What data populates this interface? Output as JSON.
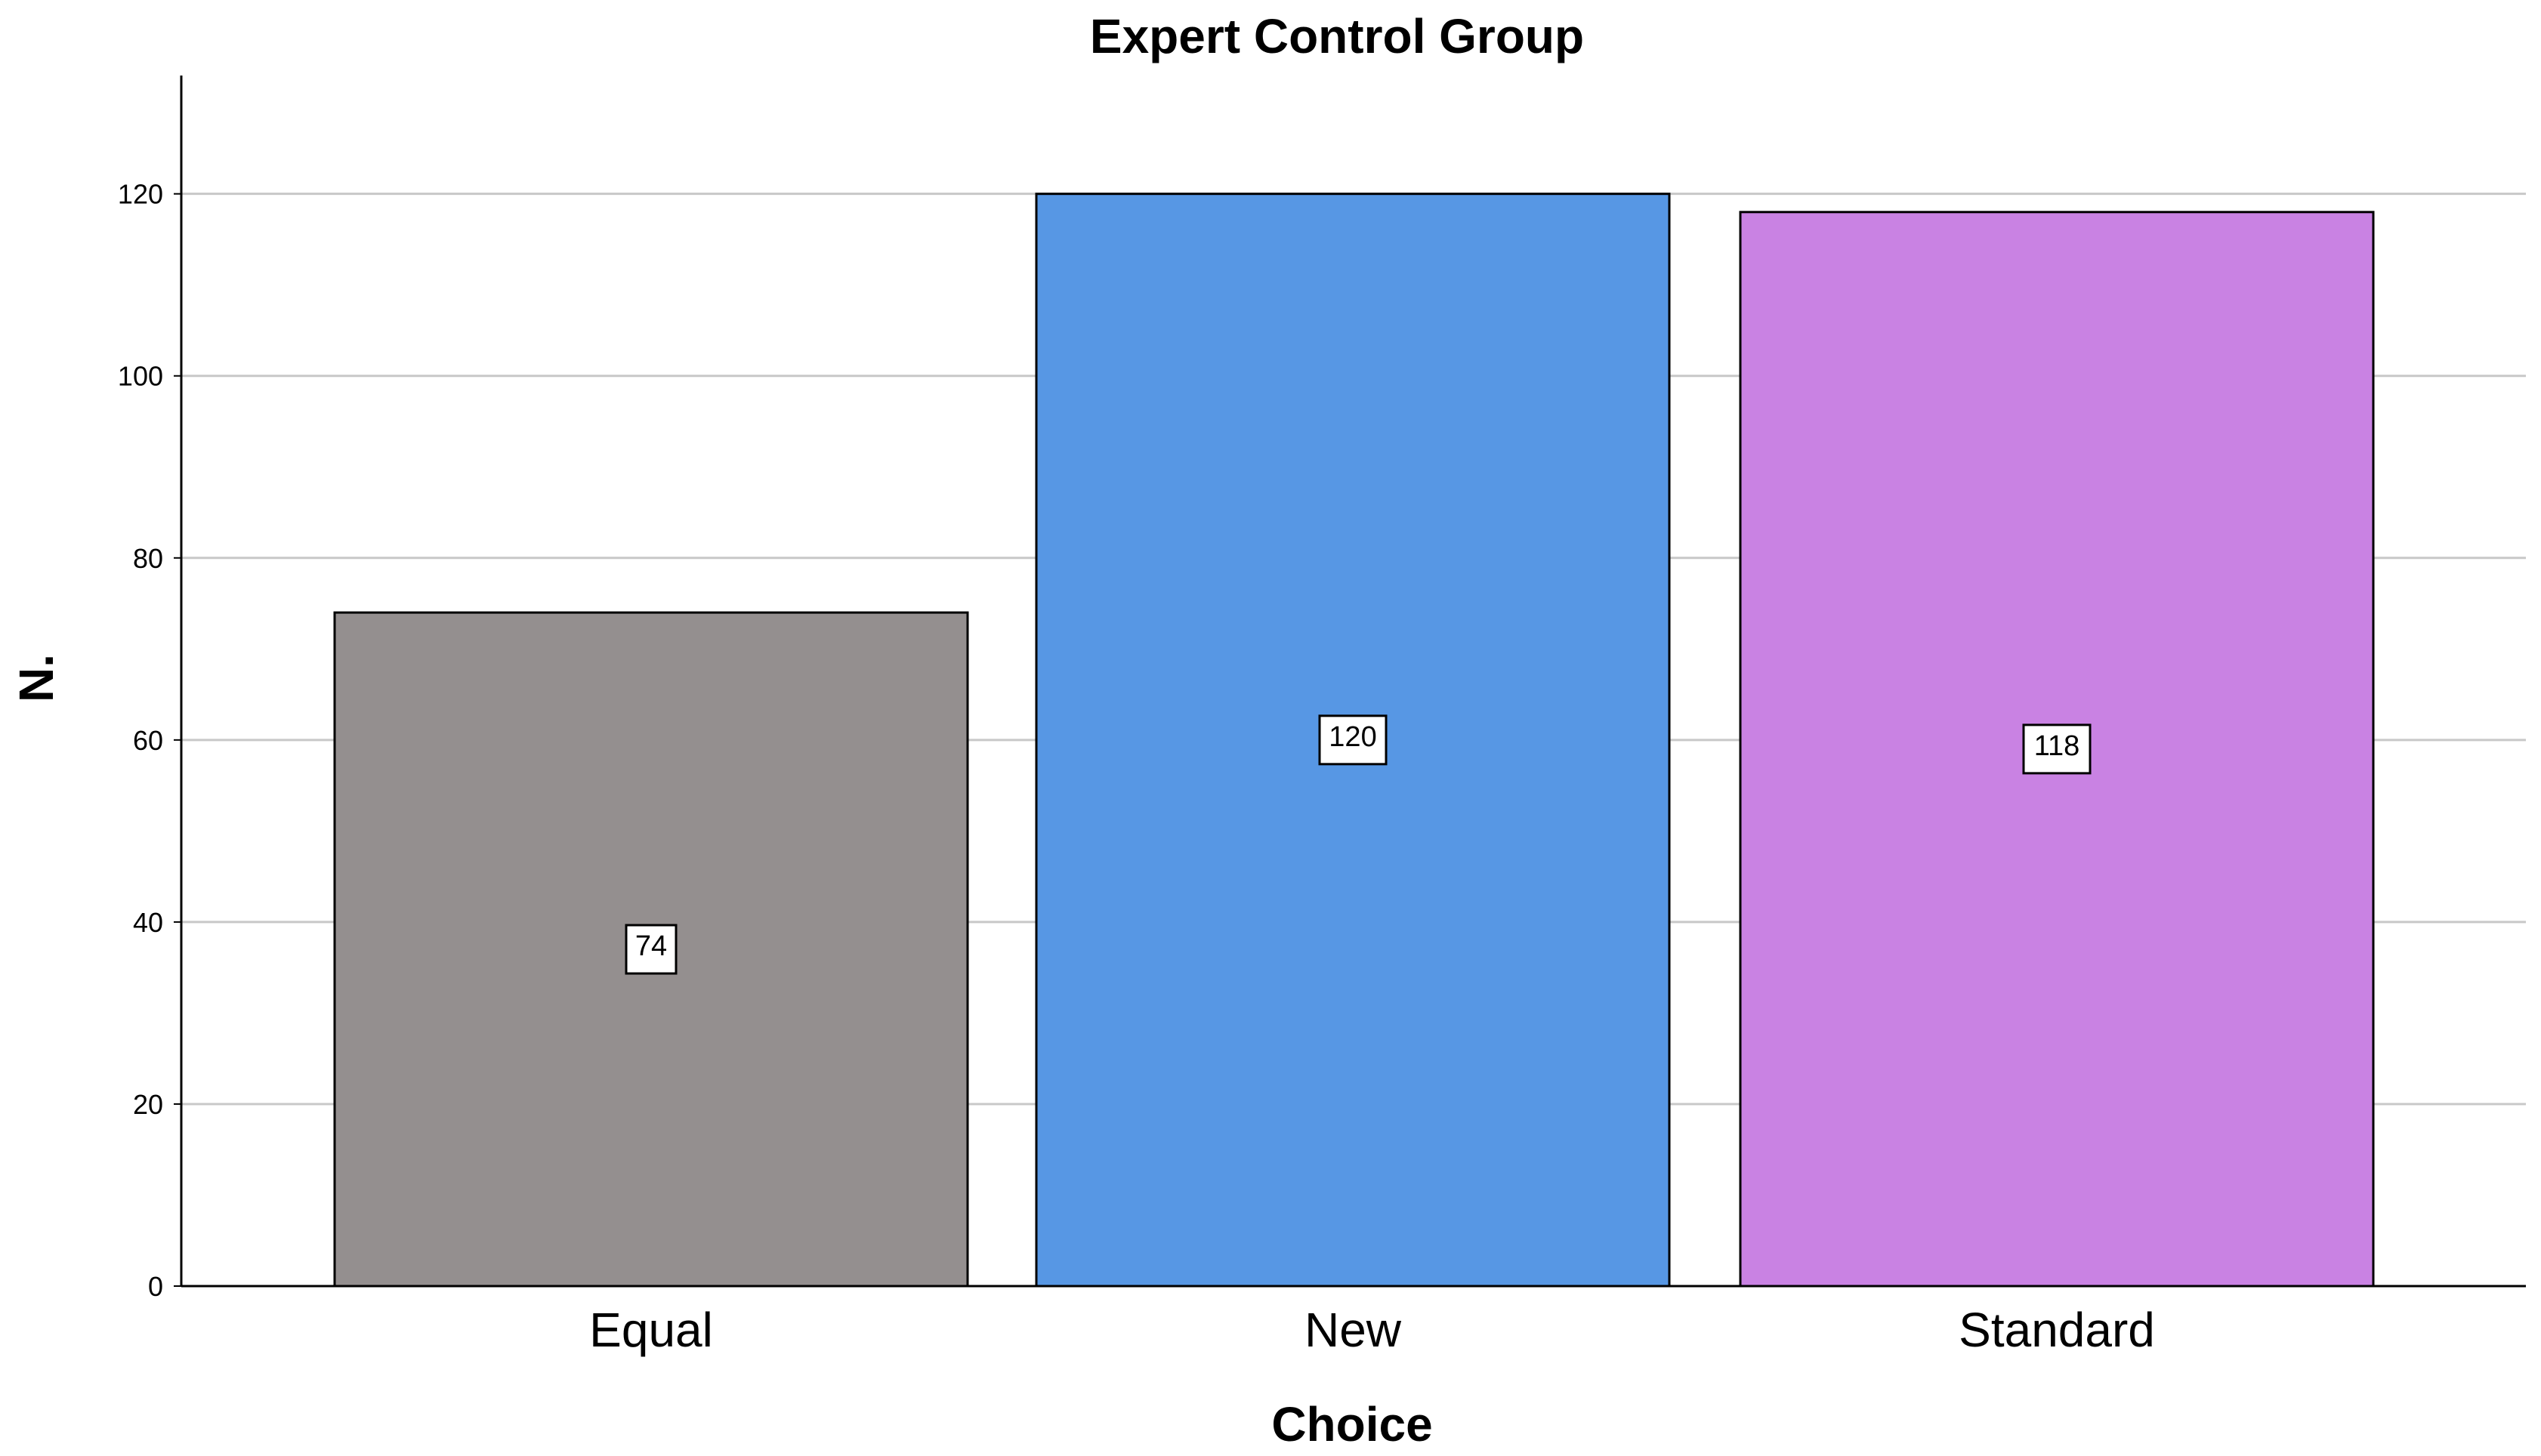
{
  "chart_data": {
    "type": "bar",
    "title": "Expert Control Group",
    "xlabel": "Choice",
    "ylabel": "N.",
    "categories": [
      "Equal",
      "New",
      "Standard"
    ],
    "values": [
      74,
      120,
      118
    ],
    "data_labels": [
      "74",
      "120",
      "118"
    ],
    "colors": [
      "#948f8f",
      "#5797e4",
      "#c982e3"
    ],
    "yticks": [
      0,
      20,
      40,
      60,
      80,
      100,
      120
    ],
    "ytick_labels": [
      "0",
      "20",
      "40",
      "60",
      "80",
      "100",
      "120"
    ],
    "ylim": [
      0,
      133
    ],
    "grid": "horizontal",
    "legend": "none"
  }
}
